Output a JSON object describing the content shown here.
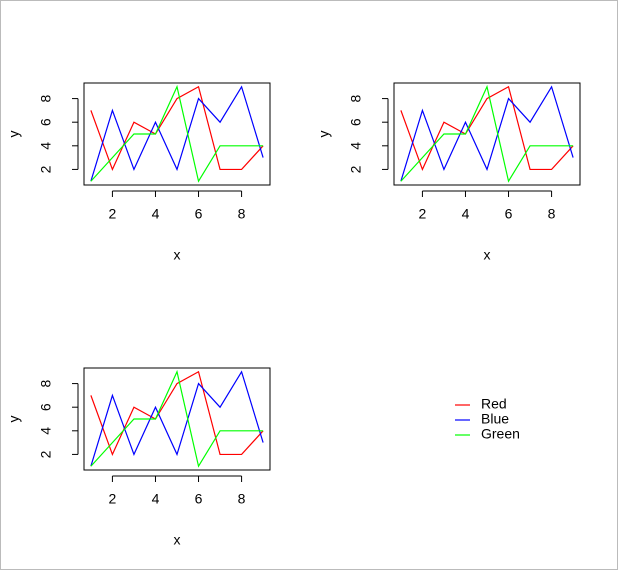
{
  "chart_data": [
    {
      "type": "line",
      "xlabel": "x",
      "ylabel": "y",
      "x": [
        1,
        2,
        3,
        4,
        5,
        6,
        7,
        8,
        9
      ],
      "series": [
        {
          "color": "#ff0000",
          "values": [
            7,
            2,
            6,
            5,
            8,
            9,
            2,
            2,
            4
          ]
        },
        {
          "color": "#0000ff",
          "values": [
            1,
            7,
            2,
            6,
            2,
            8,
            6,
            9,
            3
          ]
        },
        {
          "color": "#00ff00",
          "values": [
            1,
            3,
            5,
            5,
            9,
            1,
            4,
            4,
            4
          ]
        }
      ],
      "xlim": [
        0.68,
        9.32
      ],
      "ylim": [
        0.68,
        9.32
      ],
      "xticks": [
        2,
        4,
        6,
        8
      ],
      "yticks": [
        2,
        4,
        6,
        8
      ]
    },
    {
      "type": "line",
      "xlabel": "x",
      "ylabel": "y",
      "x": [
        1,
        2,
        3,
        4,
        5,
        6,
        7,
        8,
        9
      ],
      "series": [
        {
          "color": "#ff0000",
          "values": [
            7,
            2,
            6,
            5,
            8,
            9,
            2,
            2,
            4
          ]
        },
        {
          "color": "#0000ff",
          "values": [
            1,
            7,
            2,
            6,
            2,
            8,
            6,
            9,
            3
          ]
        },
        {
          "color": "#00ff00",
          "values": [
            1,
            3,
            5,
            5,
            9,
            1,
            4,
            4,
            4
          ]
        }
      ],
      "xlim": [
        0.68,
        9.32
      ],
      "ylim": [
        0.68,
        9.32
      ],
      "xticks": [
        2,
        4,
        6,
        8
      ],
      "yticks": [
        2,
        4,
        6,
        8
      ]
    },
    {
      "type": "line",
      "xlabel": "x",
      "ylabel": "y",
      "x": [
        1,
        2,
        3,
        4,
        5,
        6,
        7,
        8,
        9
      ],
      "series": [
        {
          "color": "#ff0000",
          "values": [
            7,
            2,
            6,
            5,
            8,
            9,
            2,
            2,
            4
          ]
        },
        {
          "color": "#0000ff",
          "values": [
            1,
            7,
            2,
            6,
            2,
            8,
            6,
            9,
            3
          ]
        },
        {
          "color": "#00ff00",
          "values": [
            1,
            3,
            5,
            5,
            9,
            1,
            4,
            4,
            4
          ]
        }
      ],
      "xlim": [
        0.68,
        9.32
      ],
      "ylim": [
        0.68,
        9.32
      ],
      "xticks": [
        2,
        4,
        6,
        8
      ],
      "yticks": [
        2,
        4,
        6,
        8
      ]
    }
  ],
  "legend": {
    "entries": [
      {
        "name": "Red",
        "color": "#ff0000"
      },
      {
        "name": "Blue",
        "color": "#0000ff"
      },
      {
        "name": "Green",
        "color": "#00ff00"
      }
    ]
  }
}
